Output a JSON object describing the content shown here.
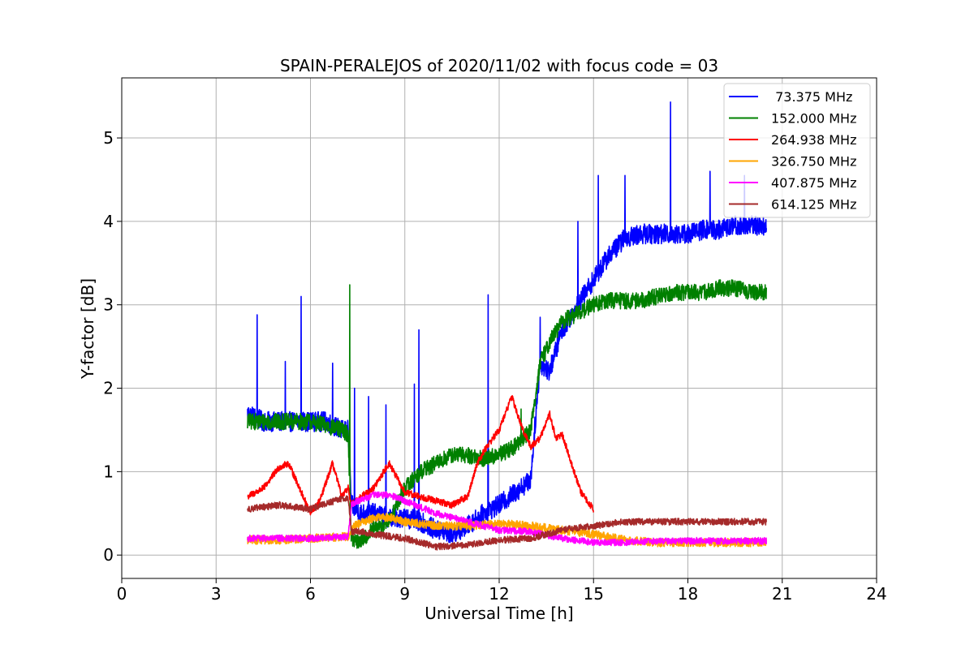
{
  "chart_data": {
    "type": "line",
    "title": "SPAIN-PERALEJOS of 2020/11/02 with focus code = 03",
    "xlabel": "Universal Time [h]",
    "ylabel": "Y-factor [dB]",
    "xlim": [
      0,
      24
    ],
    "ylim": [
      -0.28,
      5.72
    ],
    "xticks": [
      "0",
      "3",
      "6",
      "9",
      "12",
      "15",
      "18",
      "21",
      "24"
    ],
    "yticks": [
      "0",
      "1",
      "2",
      "3",
      "4",
      "5"
    ],
    "grid": true,
    "legend_position": "top-right",
    "series": [
      {
        "name": " 73.375 MHz",
        "color": "#0000ff",
        "noise": 0.12,
        "x": [
          4.0,
          4.5,
          5.0,
          5.5,
          6.0,
          6.5,
          7.0,
          7.2,
          7.3,
          7.6,
          8.0,
          8.5,
          9.0,
          9.5,
          10.0,
          10.5,
          11.0,
          11.5,
          12.0,
          12.5,
          13.0,
          13.3,
          13.6,
          14.0,
          14.5,
          15.0,
          15.5,
          16.0,
          16.5,
          17.0,
          17.5,
          18.0,
          18.5,
          19.0,
          19.5,
          20.0,
          20.5
        ],
        "y": [
          1.7,
          1.6,
          1.6,
          1.6,
          1.6,
          1.6,
          1.5,
          1.5,
          0.6,
          0.5,
          0.5,
          0.45,
          0.45,
          0.4,
          0.3,
          0.25,
          0.35,
          0.5,
          0.6,
          0.75,
          0.9,
          2.3,
          2.2,
          2.7,
          3.0,
          3.3,
          3.6,
          3.8,
          3.85,
          3.85,
          3.85,
          3.85,
          3.9,
          3.9,
          3.95,
          3.95,
          3.95
        ],
        "spikes": [
          [
            4.3,
            2.88
          ],
          [
            5.2,
            2.32
          ],
          [
            5.7,
            3.1
          ],
          [
            6.7,
            2.3
          ],
          [
            7.4,
            2.0
          ],
          [
            7.85,
            1.9
          ],
          [
            8.4,
            1.8
          ],
          [
            9.3,
            2.05
          ],
          [
            9.45,
            2.7
          ],
          [
            11.65,
            3.12
          ],
          [
            13.3,
            2.85
          ],
          [
            14.5,
            4.0
          ],
          [
            15.15,
            4.55
          ],
          [
            16.0,
            4.55
          ],
          [
            17.45,
            5.43
          ],
          [
            18.7,
            4.6
          ],
          [
            19.8,
            4.55
          ]
        ]
      },
      {
        "name": "152.000 MHz",
        "color": "#008000",
        "noise": 0.1,
        "x": [
          4.0,
          4.5,
          5.0,
          5.5,
          6.0,
          6.5,
          7.0,
          7.2,
          7.3,
          7.5,
          8.0,
          8.5,
          9.0,
          9.5,
          10.0,
          10.5,
          11.0,
          11.5,
          12.0,
          12.5,
          13.0,
          13.3,
          13.6,
          14.0,
          14.5,
          15.0,
          15.5,
          16.0,
          16.5,
          17.0,
          17.5,
          18.0,
          18.5,
          19.0,
          19.5,
          20.0,
          20.5
        ],
        "y": [
          1.6,
          1.6,
          1.6,
          1.6,
          1.6,
          1.55,
          1.5,
          1.45,
          0.2,
          0.15,
          0.3,
          0.4,
          0.8,
          1.0,
          1.1,
          1.2,
          1.2,
          1.15,
          1.2,
          1.3,
          1.5,
          2.3,
          2.55,
          2.8,
          2.9,
          3.0,
          3.05,
          3.05,
          3.05,
          3.1,
          3.15,
          3.15,
          3.15,
          3.2,
          3.2,
          3.15,
          3.15
        ],
        "spikes": [
          [
            7.25,
            3.24
          ],
          [
            12.7,
            1.75
          ]
        ]
      },
      {
        "name": "264.938 MHz",
        "color": "#ff0000",
        "noise": 0.04,
        "x": [
          4.0,
          4.5,
          5.0,
          5.3,
          5.6,
          6.0,
          6.3,
          6.7,
          7.0,
          7.2,
          7.3,
          7.6,
          8.0,
          8.5,
          9.0,
          9.5,
          10.0,
          10.5,
          11.0,
          11.3,
          11.6,
          12.0,
          12.4,
          12.7,
          13.0,
          13.3,
          13.6,
          13.8,
          14.0,
          14.3,
          14.6,
          15.0
        ],
        "y": [
          0.7,
          0.8,
          1.05,
          1.1,
          0.85,
          0.5,
          0.65,
          1.1,
          0.7,
          0.8,
          0.6,
          0.7,
          0.8,
          1.1,
          0.75,
          0.7,
          0.65,
          0.6,
          0.7,
          1.1,
          1.3,
          1.5,
          1.9,
          1.55,
          1.3,
          1.4,
          1.7,
          1.4,
          1.45,
          1.1,
          0.75,
          0.55
        ],
        "spikes": []
      },
      {
        "name": "326.750 MHz",
        "color": "#ffa500",
        "noise": 0.05,
        "x": [
          4.0,
          5.0,
          6.0,
          7.0,
          7.2,
          7.4,
          8.0,
          8.5,
          9.0,
          10.0,
          11.0,
          12.0,
          13.0,
          14.0,
          15.0,
          16.0,
          17.0,
          18.0,
          19.0,
          20.0,
          20.5
        ],
        "y": [
          0.18,
          0.18,
          0.2,
          0.22,
          0.22,
          0.35,
          0.45,
          0.45,
          0.4,
          0.35,
          0.35,
          0.38,
          0.35,
          0.3,
          0.25,
          0.18,
          0.15,
          0.15,
          0.15,
          0.15,
          0.15
        ],
        "spikes": []
      },
      {
        "name": "407.875 MHz",
        "color": "#ff00ff",
        "noise": 0.04,
        "x": [
          4.0,
          5.0,
          6.0,
          7.0,
          7.2,
          7.3,
          7.5,
          8.0,
          8.5,
          9.0,
          10.0,
          11.0,
          12.0,
          13.0,
          14.0,
          15.0,
          16.0,
          17.0,
          18.0,
          19.0,
          20.0,
          20.5
        ],
        "y": [
          0.2,
          0.2,
          0.2,
          0.22,
          0.22,
          0.6,
          0.65,
          0.72,
          0.72,
          0.65,
          0.5,
          0.4,
          0.3,
          0.28,
          0.2,
          0.15,
          0.15,
          0.17,
          0.17,
          0.17,
          0.17,
          0.17
        ],
        "spikes": []
      },
      {
        "name": "614.125 MHz",
        "color": "#a52a2a",
        "noise": 0.04,
        "x": [
          4.0,
          5.0,
          6.0,
          7.0,
          7.2,
          7.3,
          7.6,
          8.0,
          9.0,
          10.0,
          11.0,
          12.0,
          13.0,
          14.0,
          15.0,
          16.0,
          17.0,
          18.0,
          19.0,
          20.0,
          20.5
        ],
        "y": [
          0.55,
          0.6,
          0.55,
          0.68,
          0.68,
          0.28,
          0.28,
          0.25,
          0.2,
          0.1,
          0.12,
          0.18,
          0.2,
          0.3,
          0.35,
          0.4,
          0.4,
          0.4,
          0.4,
          0.4,
          0.4
        ],
        "spikes": []
      }
    ]
  }
}
